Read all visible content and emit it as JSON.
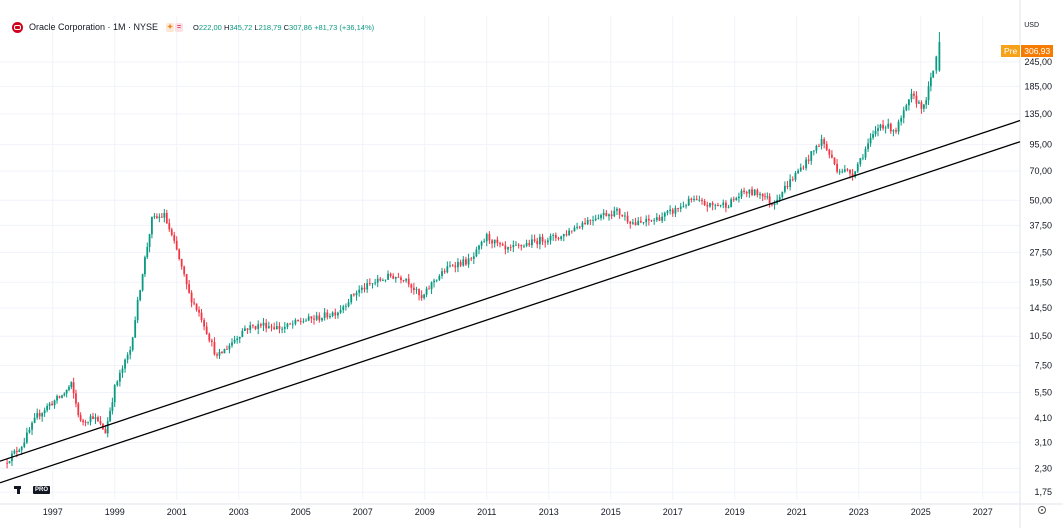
{
  "legend": {
    "title": "Oracle Corporation · 1M · NYSE",
    "ohlc": {
      "o_label": "O",
      "o": "222,00",
      "h_label": "H",
      "h": "345,72",
      "l_label": "L",
      "l": "218,79",
      "c_label": "C",
      "c": "307,86",
      "change": "+81,73 (+36,14%)"
    }
  },
  "currency": "USD",
  "pre_tag": {
    "label": "Pre",
    "value": "306,93"
  },
  "brand": {
    "pro_label": "PRO"
  },
  "colors": {
    "up": "#089981",
    "down": "#f23645",
    "pre": "#f57c00",
    "trendline": "#000000",
    "grid": "#f0f3fa"
  },
  "chart_data": {
    "type": "candlestick",
    "scale": "log",
    "x_axis": {
      "range": [
        1995.3,
        2028.2
      ],
      "ticks": [
        "1997",
        "1999",
        "2001",
        "2003",
        "2005",
        "2007",
        "2009",
        "2011",
        "2013",
        "2015",
        "2017",
        "2019",
        "2021",
        "2023",
        "2025",
        "2027"
      ]
    },
    "y_axis": {
      "range": [
        1.6,
        330
      ],
      "ticks": [
        "245,00",
        "185,00",
        "135,00",
        "95,00",
        "70,00",
        "50,00",
        "37,50",
        "27,50",
        "19,50",
        "14,50",
        "10,50",
        "7,50",
        "5,50",
        "4,10",
        "3,10",
        "2,30",
        "1,75"
      ]
    },
    "grid": true,
    "series": [
      {
        "t": 1995.45,
        "c": 2.45
      },
      {
        "t": 1996.0,
        "c": 3.0
      },
      {
        "t": 1996.5,
        "c": 4.2
      },
      {
        "t": 1996.9,
        "c": 4.8
      },
      {
        "t": 1997.3,
        "c": 5.3
      },
      {
        "t": 1997.6,
        "c": 6.0
      },
      {
        "t": 1997.9,
        "c": 3.9
      },
      {
        "t": 1998.3,
        "c": 4.2
      },
      {
        "t": 1998.7,
        "c": 3.5
      },
      {
        "t": 1999.0,
        "c": 5.8
      },
      {
        "t": 1999.5,
        "c": 9.0
      },
      {
        "t": 1999.9,
        "c": 22.0
      },
      {
        "t": 2000.2,
        "c": 40.0
      },
      {
        "t": 2000.6,
        "c": 42.0
      },
      {
        "t": 2001.0,
        "c": 28.0
      },
      {
        "t": 2001.4,
        "c": 17.0
      },
      {
        "t": 2001.8,
        "c": 13.0
      },
      {
        "t": 2002.3,
        "c": 8.2
      },
      {
        "t": 2002.7,
        "c": 9.5
      },
      {
        "t": 2003.2,
        "c": 11.5
      },
      {
        "t": 2003.8,
        "c": 12.0
      },
      {
        "t": 2004.4,
        "c": 11.5
      },
      {
        "t": 2005.0,
        "c": 12.5
      },
      {
        "t": 2005.6,
        "c": 13.0
      },
      {
        "t": 2006.2,
        "c": 14.0
      },
      {
        "t": 2006.8,
        "c": 17.5
      },
      {
        "t": 2007.4,
        "c": 19.5
      },
      {
        "t": 2007.9,
        "c": 21.0
      },
      {
        "t": 2008.4,
        "c": 20.5
      },
      {
        "t": 2008.9,
        "c": 16.0
      },
      {
        "t": 2009.3,
        "c": 20.0
      },
      {
        "t": 2009.9,
        "c": 24.0
      },
      {
        "t": 2010.5,
        "c": 25.0
      },
      {
        "t": 2011.0,
        "c": 33.0
      },
      {
        "t": 2011.6,
        "c": 28.0
      },
      {
        "t": 2012.2,
        "c": 30.0
      },
      {
        "t": 2012.8,
        "c": 32.0
      },
      {
        "t": 2013.4,
        "c": 33.0
      },
      {
        "t": 2014.0,
        "c": 38.0
      },
      {
        "t": 2014.6,
        "c": 42.0
      },
      {
        "t": 2015.2,
        "c": 44.0
      },
      {
        "t": 2015.8,
        "c": 38.0
      },
      {
        "t": 2016.4,
        "c": 40.0
      },
      {
        "t": 2017.0,
        "c": 44.0
      },
      {
        "t": 2017.6,
        "c": 50.0
      },
      {
        "t": 2018.2,
        "c": 47.0
      },
      {
        "t": 2018.8,
        "c": 48.0
      },
      {
        "t": 2019.3,
        "c": 55.0
      },
      {
        "t": 2019.9,
        "c": 54.0
      },
      {
        "t": 2020.2,
        "c": 48.0
      },
      {
        "t": 2020.7,
        "c": 60.0
      },
      {
        "t": 2021.3,
        "c": 78.0
      },
      {
        "t": 2021.8,
        "c": 100.0
      },
      {
        "t": 2022.3,
        "c": 72.0
      },
      {
        "t": 2022.8,
        "c": 68.0
      },
      {
        "t": 2023.3,
        "c": 95.0
      },
      {
        "t": 2023.7,
        "c": 120.0
      },
      {
        "t": 2024.2,
        "c": 112.0
      },
      {
        "t": 2024.7,
        "c": 165.0
      },
      {
        "t": 2025.1,
        "c": 145.0
      },
      {
        "t": 2025.4,
        "c": 222.0
      },
      {
        "t": 2025.6,
        "o": 222.0,
        "h": 345.72,
        "l": 218.79,
        "c": 307.86
      }
    ],
    "trendlines": [
      {
        "from": [
          1995.3,
          2.5
        ],
        "to": [
          2028.2,
          125.0
        ]
      },
      {
        "from": [
          1995.3,
          1.95
        ],
        "to": [
          2028.2,
          98.0
        ]
      }
    ]
  }
}
